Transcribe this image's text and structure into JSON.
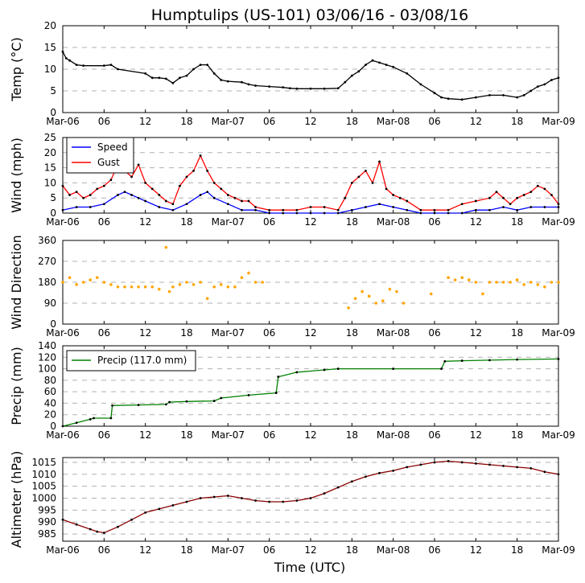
{
  "chart_data": {
    "title": "Humptulips (US-101) 03/06/16 - 03/08/16",
    "xlabel": "Time (UTC)",
    "x_tick_labels": [
      "Mar-06",
      "06",
      "12",
      "18",
      "Mar-07",
      "06",
      "12",
      "18",
      "Mar-08",
      "06",
      "12",
      "18",
      "Mar-09"
    ],
    "x_range_hours": [
      0,
      72
    ],
    "panels": [
      {
        "type": "line",
        "ylabel": "Temp (°C)",
        "ylim": [
          0,
          20
        ],
        "yticks": [
          0,
          5,
          10,
          15,
          20
        ],
        "series": [
          {
            "name": "Temp",
            "color": "#000000",
            "x": [
              0,
              0.5,
              1,
              2,
              3,
              6,
              7,
              8,
              12,
              13,
              14,
              15,
              16,
              17,
              18,
              19,
              20,
              21,
              22,
              23,
              24,
              26,
              27,
              28,
              30,
              32,
              33,
              34,
              36,
              38,
              40,
              41,
              42,
              43,
              44,
              45,
              46,
              47,
              48,
              50,
              52,
              54,
              55,
              56,
              58,
              60,
              62,
              64,
              66,
              67,
              68,
              69,
              70,
              71,
              72
            ],
            "y": [
              14,
              12.5,
              12,
              11,
              10.8,
              10.8,
              11,
              10,
              9,
              8,
              8,
              7.8,
              6.8,
              8,
              8.5,
              10,
              11,
              11,
              9,
              7.5,
              7.2,
              7,
              6.5,
              6.2,
              6,
              5.8,
              5.6,
              5.5,
              5.5,
              5.5,
              5.6,
              7,
              8.5,
              9.5,
              11,
              12,
              11.5,
              11,
              10.5,
              9,
              6.5,
              4.5,
              3.5,
              3.2,
              3,
              3.5,
              4,
              4,
              3.5,
              4,
              5,
              6,
              6.5,
              7.5,
              8
            ]
          }
        ]
      },
      {
        "type": "line",
        "ylabel": "Wind (mph)",
        "ylim": [
          0,
          25
        ],
        "yticks": [
          0,
          5,
          10,
          15,
          20,
          25
        ],
        "legend": [
          "Speed",
          "Gust"
        ],
        "series": [
          {
            "name": "Speed",
            "color": "#0000ff",
            "x": [
              0,
              2,
              4,
              6,
              8,
              9,
              10,
              11,
              12,
              14,
              16,
              18,
              20,
              21,
              22,
              24,
              26,
              28,
              30,
              32,
              34,
              36,
              38,
              40,
              42,
              44,
              46,
              48,
              50,
              52,
              54,
              56,
              58,
              60,
              62,
              64,
              66,
              68,
              70,
              72
            ],
            "y": [
              1,
              2,
              2,
              3,
              6,
              7,
              6,
              5,
              4,
              2,
              1,
              3,
              6,
              7,
              5,
              3,
              1,
              1,
              0,
              0,
              0,
              0,
              0,
              0,
              1,
              2,
              3,
              2,
              1,
              0,
              0,
              0,
              0,
              1,
              1,
              2,
              1,
              2,
              2,
              2
            ]
          },
          {
            "name": "Gust",
            "color": "#ff0000",
            "x": [
              0,
              1,
              2,
              3,
              4,
              5,
              6,
              7,
              8,
              9,
              10,
              11,
              12,
              13,
              14,
              15,
              16,
              17,
              18,
              19,
              20,
              21,
              22,
              23,
              24,
              25,
              26,
              27,
              28,
              30,
              32,
              34,
              36,
              38,
              40,
              41,
              42,
              43,
              44,
              45,
              46,
              47,
              48,
              49,
              50,
              52,
              54,
              56,
              58,
              60,
              62,
              63,
              64,
              65,
              66,
              67,
              68,
              69,
              70,
              71,
              72
            ],
            "y": [
              9,
              6,
              7,
              5,
              6,
              8,
              9,
              11,
              16,
              14,
              12,
              16,
              10,
              8,
              6,
              4,
              3,
              9,
              12,
              14,
              19,
              14,
              10,
              8,
              6,
              5,
              4,
              4,
              2,
              1,
              1,
              1,
              2,
              2,
              1,
              5,
              10,
              12,
              14,
              10,
              17,
              8,
              6,
              5,
              4,
              1,
              1,
              1,
              3,
              4,
              5,
              7,
              5,
              3,
              5,
              6,
              7,
              9,
              8,
              6,
              3
            ]
          }
        ]
      },
      {
        "type": "scatter",
        "ylabel": "Wind Direction",
        "ylim": [
          0,
          360
        ],
        "yticks": [
          0,
          90,
          180,
          270,
          360
        ],
        "series": [
          {
            "name": "Direction",
            "color": "#ffa500",
            "x": [
              0,
              1,
              2,
              3,
              4,
              5,
              6,
              7,
              8,
              9,
              10,
              11,
              12,
              13,
              14,
              15,
              15.5,
              16,
              17,
              18,
              19,
              20,
              21,
              22,
              23,
              24,
              25,
              26,
              27,
              28,
              29,
              41.5,
              42.5,
              43.5,
              44.5,
              45.5,
              46.5,
              47.5,
              48.5,
              49.5,
              53.5,
              56,
              57,
              58,
              59,
              60,
              61,
              62,
              63,
              64,
              65,
              66,
              67,
              68,
              69,
              70,
              71,
              72
            ],
            "y": [
              180,
              200,
              170,
              180,
              190,
              200,
              180,
              170,
              160,
              160,
              160,
              160,
              160,
              160,
              150,
              330,
              140,
              160,
              170,
              180,
              170,
              180,
              110,
              160,
              170,
              160,
              160,
              200,
              220,
              180,
              180,
              70,
              110,
              140,
              120,
              90,
              100,
              150,
              140,
              90,
              130,
              200,
              190,
              200,
              190,
              180,
              130,
              180,
              180,
              180,
              180,
              190,
              170,
              180,
              170,
              160,
              180,
              180
            ]
          }
        ]
      },
      {
        "type": "line",
        "ylabel": "Precip (mm)",
        "ylim": [
          0,
          140
        ],
        "yticks": [
          0,
          20,
          40,
          60,
          80,
          100,
          120,
          140
        ],
        "legend": [
          "Precip (117.0 mm)"
        ],
        "series": [
          {
            "name": "Precip (117.0 mm)",
            "color": "#008000",
            "x": [
              0,
              2,
              4,
              4.5,
              7,
              7.2,
              11,
              15,
              15.5,
              18,
              22,
              23,
              27,
              31,
              31.3,
              34,
              38,
              40,
              48,
              55,
              55.5,
              58,
              62,
              66,
              72
            ],
            "y": [
              0,
              6,
              12,
              14,
              14,
              36,
              37,
              38,
              42,
              43,
              44,
              49,
              54,
              58,
              86,
              94,
              98,
              100,
              100,
              100,
              113,
              114,
              115,
              116,
              117
            ]
          }
        ]
      },
      {
        "type": "line",
        "ylabel": "Altimeter (hPa)",
        "ylim": [
          982,
          1017
        ],
        "yticks": [
          985,
          990,
          995,
          1000,
          1005,
          1010,
          1015
        ],
        "series": [
          {
            "name": "Altimeter",
            "color": "#8b0000",
            "x": [
              0,
              2,
              4,
              5,
              6,
              8,
              10,
              12,
              14,
              16,
              18,
              20,
              22,
              24,
              26,
              28,
              30,
              32,
              34,
              36,
              38,
              40,
              42,
              44,
              46,
              48,
              50,
              52,
              54,
              56,
              58,
              60,
              62,
              64,
              66,
              68,
              70,
              72
            ],
            "y": [
              991,
              989,
              987,
              986,
              985.5,
              988,
              991,
              994,
              995.5,
              997,
              998.5,
              1000,
              1000.5,
              1001,
              1000,
              999,
              998.5,
              998.5,
              999,
              1000,
              1002,
              1004.5,
              1007,
              1009,
              1010.5,
              1011.5,
              1013,
              1014,
              1015,
              1015.5,
              1015,
              1014.5,
              1014,
              1013.5,
              1013,
              1012.5,
              1011,
              1010
            ]
          }
        ]
      }
    ]
  }
}
